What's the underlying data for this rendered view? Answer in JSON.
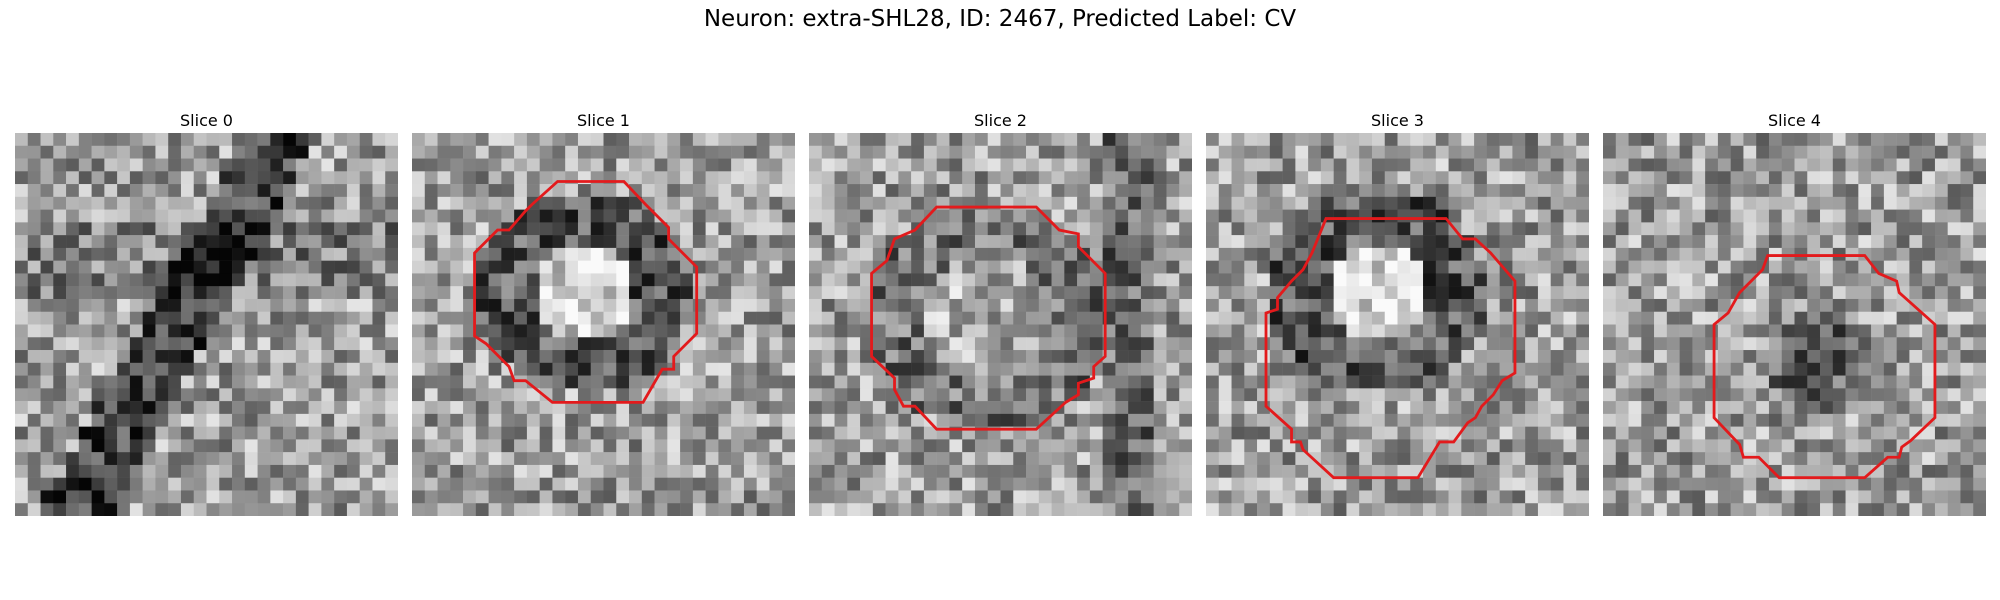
{
  "figure": {
    "title": "Neuron: extra-SHL28, ID: 2467, Predicted Label: CV",
    "outline_color": "#e31a1c"
  },
  "panels": [
    {
      "title": "Slice 0",
      "has_outline": false,
      "pattern": "diagonal-dark-band"
    },
    {
      "title": "Slice 1",
      "has_outline": true,
      "pattern": "dark-ring-bright-core"
    },
    {
      "title": "Slice 2",
      "has_outline": true,
      "pattern": "mottled-center"
    },
    {
      "title": "Slice 3",
      "has_outline": true,
      "pattern": "dark-ring-bright-core"
    },
    {
      "title": "Slice 4",
      "has_outline": true,
      "pattern": "dark-center"
    }
  ]
}
